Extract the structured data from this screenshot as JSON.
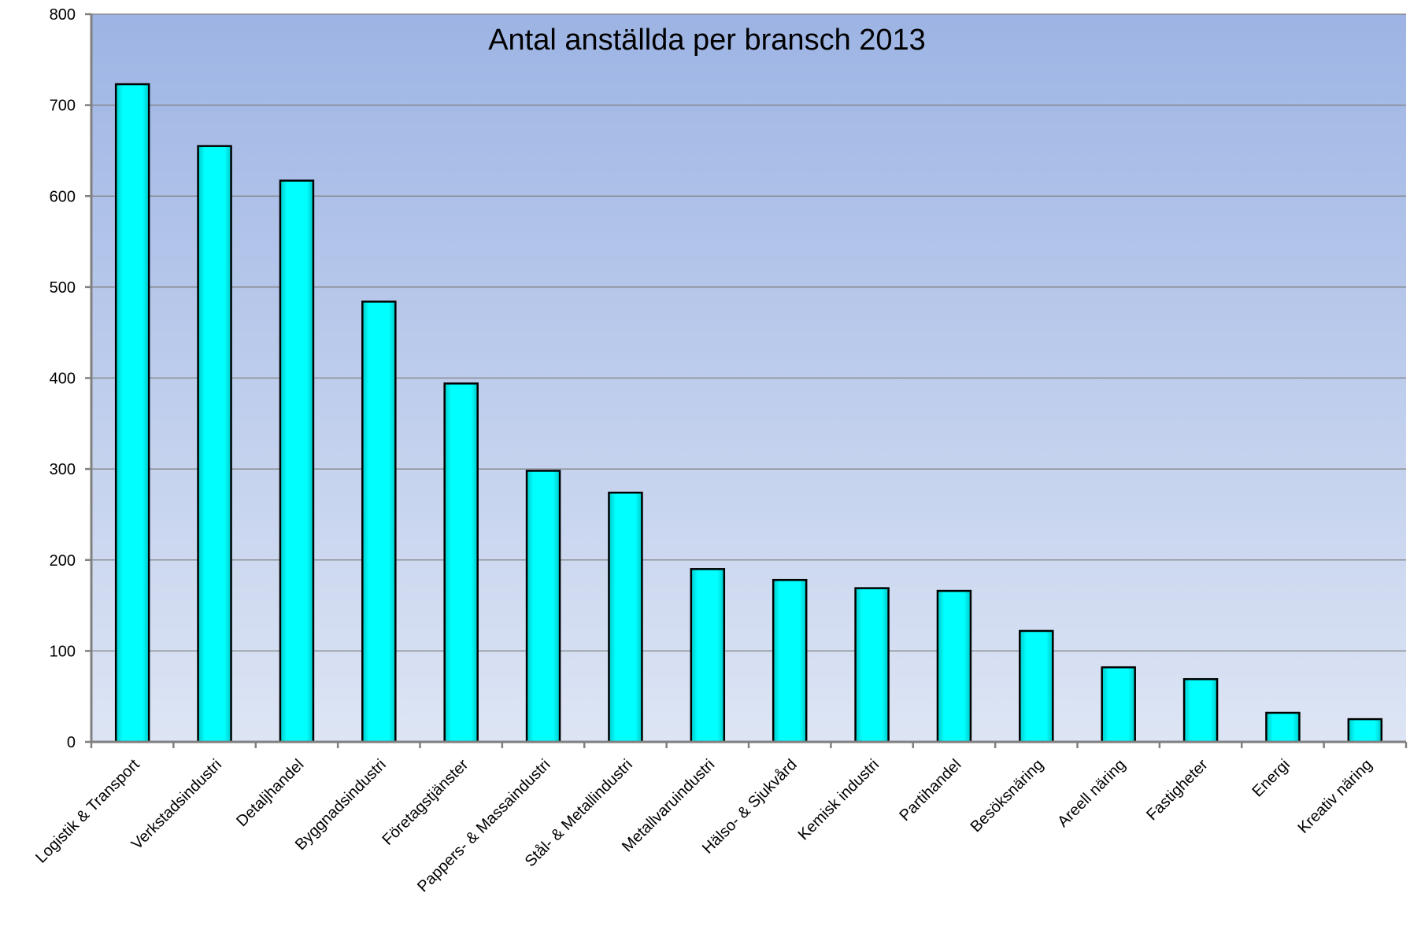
{
  "chart_data": {
    "type": "bar",
    "title": "Antal anställda per bransch 2013",
    "xlabel": "",
    "ylabel": "",
    "ylim": [
      0,
      800
    ],
    "yticks": [
      "0",
      "100",
      "200",
      "300",
      "400",
      "500",
      "600",
      "700",
      "800"
    ],
    "grid": true,
    "legend": "none",
    "categories": [
      "Logistik & Transport",
      "Verkstadsindustri",
      "Detaljhandel",
      "Byggnadsindustri",
      "Företagstjänster",
      "Pappers- & Massaindustri",
      "Stål- & Metallindustri",
      "Metallvaruindustri",
      "Hälso- & Sjukvård",
      "Kemisk industri",
      "Partihandel",
      "Besöksnäring",
      "Areell näring",
      "Fastigheter",
      "Energi",
      "Kreativ näring"
    ],
    "values": [
      723,
      655,
      617,
      484,
      394,
      298,
      274,
      190,
      178,
      169,
      166,
      122,
      82,
      69,
      32,
      25
    ],
    "colors": {
      "bar": "#00ffff",
      "bar_edge": "#000000",
      "plot_bg_top": "#9db4e4",
      "plot_bg_bottom": "#dde5f4",
      "grid": "#808080",
      "axis": "#808080"
    }
  }
}
